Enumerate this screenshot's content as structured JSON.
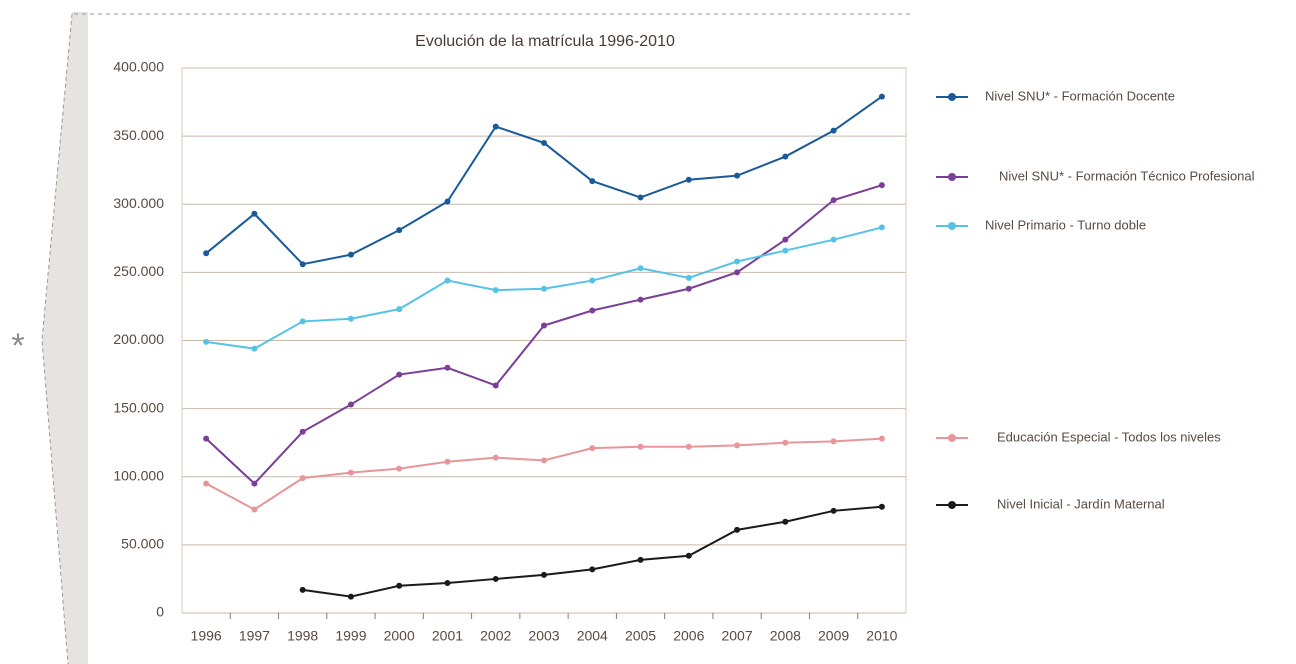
{
  "chart_data": {
    "type": "line",
    "title": "Evolución de la matrícula 1996-2010",
    "annotation": "*",
    "categories": [
      "1996",
      "1997",
      "1998",
      "1999",
      "2000",
      "2001",
      "2002",
      "2003",
      "2004",
      "2005",
      "2006",
      "2007",
      "2008",
      "2009",
      "2010"
    ],
    "ylim": [
      0,
      400000
    ],
    "yticks": [
      0,
      {
        "value": 50000,
        "label": "50.000"
      },
      {
        "value": 100000,
        "label": "100.000"
      },
      {
        "value": 150000,
        "label": "150.000"
      },
      {
        "value": 200000,
        "label": "200.000"
      },
      {
        "value": 250000,
        "label": "250.000"
      },
      {
        "value": 300000,
        "label": "300.000"
      },
      {
        "value": 350000,
        "label": "350.000"
      },
      {
        "value": 400000,
        "label": "400.000"
      }
    ],
    "grid": true,
    "legend": "right",
    "series": [
      {
        "name": "Nivel SNU* - Formación Docente",
        "color": "#1a5a9a",
        "values": [
          264000,
          293000,
          256000,
          263000,
          281000,
          302000,
          357000,
          345000,
          317000,
          305000,
          318000,
          321000,
          335000,
          354000,
          379000
        ]
      },
      {
        "name": "Nivel SNU* - Formación Técnico Profesional",
        "color": "#7a3f96",
        "values": [
          128000,
          95000,
          133000,
          153000,
          175000,
          180000,
          167000,
          211000,
          222000,
          230000,
          238000,
          250000,
          274000,
          303000,
          314000
        ]
      },
      {
        "name": "Nivel Primario - Turno doble",
        "color": "#56c2e6",
        "values": [
          199000,
          194000,
          214000,
          216000,
          223000,
          244000,
          237000,
          238000,
          244000,
          253000,
          246000,
          258000,
          266000,
          274000,
          283000
        ]
      },
      {
        "name": "Educación Especial - Todos los niveles",
        "color": "#e8959a",
        "values": [
          95000,
          76000,
          99000,
          103000,
          106000,
          111000,
          114000,
          112000,
          121000,
          122000,
          122000,
          123000,
          125000,
          126000,
          128000
        ]
      },
      {
        "name": "Nivel Inicial - Jardín Maternal",
        "color": "#1a1a1a",
        "values": [
          null,
          null,
          17000,
          12000,
          20000,
          22000,
          25000,
          28000,
          32000,
          39000,
          42000,
          61000,
          67000,
          75000,
          78000
        ]
      }
    ]
  }
}
